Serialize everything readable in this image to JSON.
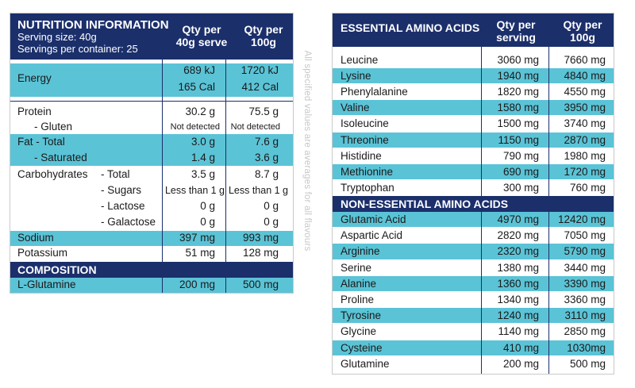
{
  "nutrition": {
    "title": "NUTRITION INFORMATION",
    "serving_size": "Serving size: 40g",
    "servings_per_container": "Servings per container: 25",
    "col1_line1": "Qty per",
    "col1_line2": "40g serve",
    "col2_line1": "Qty per",
    "col2_line2": "100g",
    "energy": {
      "label": "Energy",
      "kj_serve": "689 kJ",
      "kj_100": "1720 kJ",
      "cal_serve": "165 Cal",
      "cal_100": "412 Cal"
    },
    "protein": {
      "label": "Protein",
      "serve": "30.2 g",
      "per100": "75.5 g"
    },
    "gluten": {
      "label": "- Gluten",
      "serve": "Not detected",
      "per100": "Not detected"
    },
    "fat": {
      "label": "Fat - Total",
      "serve": "3.0 g",
      "per100": "7.6 g"
    },
    "saturated": {
      "label": "- Saturated",
      "serve": "1.4 g",
      "per100": "3.6 g"
    },
    "carbs": {
      "label": "Carbohydrates",
      "sub": "- Total",
      "serve": "3.5 g",
      "per100": "8.7 g"
    },
    "sugars": {
      "label": "- Sugars",
      "serve": "Less than 1 g",
      "per100": "Less than 1 g"
    },
    "lactose": {
      "label": "- Lactose",
      "serve": "0 g",
      "per100": "0 g"
    },
    "galactose": {
      "label": "- Galactose",
      "serve": "0 g",
      "per100": "0 g"
    },
    "sodium": {
      "label": "Sodium",
      "serve": "397 mg",
      "per100": "993 mg"
    },
    "potassium": {
      "label": "Potassium",
      "serve": "51 mg",
      "per100": "128 mg"
    },
    "composition_title": "COMPOSITION",
    "composition": {
      "label": "L-Glutamine",
      "serve": "200 mg",
      "per100": "500 mg"
    }
  },
  "vertical_note": "All specified values are averages for all flavours",
  "amino": {
    "essential_title": "ESSENTIAL AMINO ACIDS",
    "col1_line1": "Qty per",
    "col1_line2": "serving",
    "col2_line1": "Qty per",
    "col2_line2": "100g",
    "essential": [
      {
        "name": "Leucine",
        "serve": "3060 mg",
        "per100": "7660 mg"
      },
      {
        "name": "Lysine",
        "serve": "1940 mg",
        "per100": "4840 mg"
      },
      {
        "name": "Phenylalanine",
        "serve": "1820 mg",
        "per100": "4550 mg"
      },
      {
        "name": "Valine",
        "serve": "1580 mg",
        "per100": "3950 mg"
      },
      {
        "name": "Isoleucine",
        "serve": "1500 mg",
        "per100": "3740 mg"
      },
      {
        "name": "Threonine",
        "serve": "1150 mg",
        "per100": "2870 mg"
      },
      {
        "name": "Histidine",
        "serve": "790 mg",
        "per100": "1980 mg"
      },
      {
        "name": "Methionine",
        "serve": "690 mg",
        "per100": "1720 mg"
      },
      {
        "name": "Tryptophan",
        "serve": "300 mg",
        "per100": "760 mg"
      }
    ],
    "non_essential_title": "NON-ESSENTIAL AMINO ACIDS",
    "non_essential": [
      {
        "name": "Glutamic Acid",
        "serve": "4970 mg",
        "per100": "12420 mg"
      },
      {
        "name": "Aspartic Acid",
        "serve": "2820 mg",
        "per100": "7050 mg"
      },
      {
        "name": "Arginine",
        "serve": "2320 mg",
        "per100": "5790 mg"
      },
      {
        "name": "Serine",
        "serve": "1380 mg",
        "per100": "3440 mg"
      },
      {
        "name": "Alanine",
        "serve": "1360 mg",
        "per100": "3390 mg"
      },
      {
        "name": "Proline",
        "serve": "1340 mg",
        "per100": "3360 mg"
      },
      {
        "name": "Tyrosine",
        "serve": "1240 mg",
        "per100": "3110 mg"
      },
      {
        "name": "Glycine",
        "serve": "1140 mg",
        "per100": "2850 mg"
      },
      {
        "name": "Cysteine",
        "serve": "410 mg",
        "per100": "1030mg"
      },
      {
        "name": "Glutamine",
        "serve": "200 mg",
        "per100": "500 mg"
      }
    ]
  },
  "colors": {
    "navy": "#1b2f6b",
    "cyan": "#5bc3d6"
  }
}
